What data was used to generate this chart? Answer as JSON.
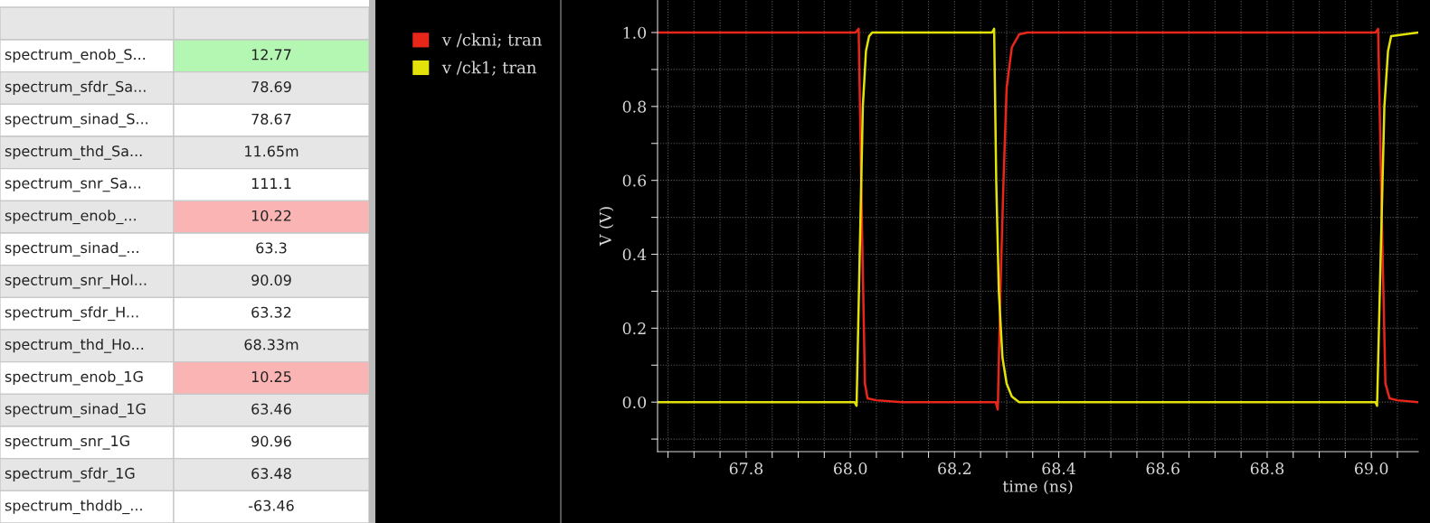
{
  "chart_data": [
    {
      "type": "other",
      "annotations": [
        "spectrum_enob_S...",
        "12.77",
        "spectrum_sfdr_Sa...",
        "78.69",
        "spectrum_sinad_S...",
        "78.67",
        "spectrum_thd_Sa...",
        "11.65m",
        "spectrum_snr_Sa...",
        "111.1",
        "spectrum_enob_...",
        "10.22",
        "spectrum_sinad_...",
        "63.3",
        "spectrum_snr_Hol...",
        "90.09",
        "spectrum_sfdr_H...",
        "63.32",
        "spectrum_thd_Ho...",
        "68.33m",
        "spectrum_enob_1G",
        "10.25",
        "spectrum_sinad_1G",
        "63.46",
        "spectrum_snr_1G",
        "90.96",
        "spectrum_sfdr_1G",
        "63.48",
        "spectrum_thddb_...",
        "-63.46"
      ],
      "colors": [
        "#b3f7b3",
        null,
        null,
        null,
        null,
        "#fab4b4",
        null,
        null,
        null,
        null,
        "#fab4b4",
        null,
        null,
        null,
        null
      ]
    },
    {
      "type": "line",
      "xlabel": "time (ns)",
      "ylabel": "V (V)",
      "xlim": [
        67.63,
        69.09
      ],
      "ylim": [
        -0.134,
        1.088
      ],
      "xticks": [
        {
          "value": 67.65,
          "label": null
        },
        {
          "value": 67.7,
          "label": null
        },
        {
          "value": 67.75,
          "label": null
        },
        {
          "value": 67.8,
          "label": "67.8"
        },
        {
          "value": 67.85,
          "label": null
        },
        {
          "value": 67.9,
          "label": null
        },
        {
          "value": 67.95,
          "label": null
        },
        {
          "value": 68.0,
          "label": "68.0"
        },
        {
          "value": 68.05,
          "label": null
        },
        {
          "value": 68.1,
          "label": null
        },
        {
          "value": 68.15,
          "label": null
        },
        {
          "value": 68.2,
          "label": "68.2"
        },
        {
          "value": 68.25,
          "label": null
        },
        {
          "value": 68.3,
          "label": null
        },
        {
          "value": 68.35,
          "label": null
        },
        {
          "value": 68.4,
          "label": "68.4"
        },
        {
          "value": 68.45,
          "label": null
        },
        {
          "value": 68.5,
          "label": null
        },
        {
          "value": 68.55,
          "label": null
        },
        {
          "value": 68.6,
          "label": "68.6"
        },
        {
          "value": 68.65,
          "label": null
        },
        {
          "value": 68.7,
          "label": null
        },
        {
          "value": 68.75,
          "label": null
        },
        {
          "value": 68.8,
          "label": "68.8"
        },
        {
          "value": 68.85,
          "label": null
        },
        {
          "value": 68.9,
          "label": null
        },
        {
          "value": 68.95,
          "label": null
        },
        {
          "value": 69.0,
          "label": "69.0"
        },
        {
          "value": 69.05,
          "label": null
        }
      ],
      "yticks": [
        {
          "value": -0.1,
          "label": null
        },
        {
          "value": 0.0,
          "label": "0.0"
        },
        {
          "value": 0.1,
          "label": null
        },
        {
          "value": 0.2,
          "label": "0.2"
        },
        {
          "value": 0.3,
          "label": null
        },
        {
          "value": 0.4,
          "label": "0.4"
        },
        {
          "value": 0.5,
          "label": null
        },
        {
          "value": 0.6,
          "label": "0.6"
        },
        {
          "value": 0.7,
          "label": null
        },
        {
          "value": 0.8,
          "label": "0.8"
        },
        {
          "value": 0.9,
          "label": null
        },
        {
          "value": 1.0,
          "label": "1.0"
        }
      ],
      "grid": true,
      "legend": "left",
      "marker": "none",
      "line_style": "solid",
      "series": [
        {
          "name": "v /ckni; tran",
          "color": "#e8261a",
          "x": [
            67.63,
            68.01,
            68.016,
            68.022,
            68.028,
            68.033,
            68.05,
            68.1,
            68.279,
            68.283,
            68.288,
            68.294,
            68.3,
            68.31,
            68.324,
            68.34,
            69.008,
            69.013,
            69.02,
            69.027,
            69.035,
            69.05,
            69.09
          ],
          "values": [
            1.0,
            1.0,
            1.01,
            0.5,
            0.05,
            0.01,
            0.005,
            0.0,
            0.0,
            -0.02,
            0.3,
            0.6,
            0.85,
            0.96,
            0.995,
            1.0,
            1.0,
            1.01,
            0.5,
            0.05,
            0.01,
            0.005,
            0.0
          ]
        },
        {
          "name": "v /ck1; tran",
          "color": "#e2e20a",
          "x": [
            67.63,
            68.008,
            68.012,
            68.018,
            68.024,
            68.03,
            68.036,
            68.042,
            68.272,
            68.276,
            68.28,
            68.285,
            68.292,
            68.3,
            68.31,
            68.324,
            69.008,
            69.011,
            69.018,
            69.025,
            69.032,
            69.038,
            69.09
          ],
          "values": [
            0.0,
            0.0,
            -0.01,
            0.4,
            0.8,
            0.95,
            0.99,
            1.0,
            1.0,
            1.01,
            0.6,
            0.3,
            0.12,
            0.05,
            0.015,
            0.0,
            0.0,
            -0.01,
            0.4,
            0.8,
            0.95,
            0.99,
            1.0
          ]
        }
      ]
    }
  ]
}
